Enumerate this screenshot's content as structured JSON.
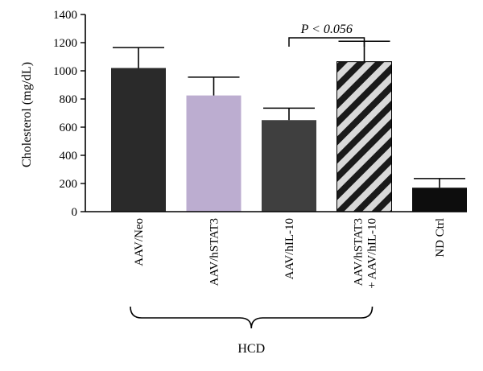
{
  "chart_data": {
    "type": "bar",
    "ylabel": "Cholesterol (mg/dL)",
    "ylim": [
      0,
      1400
    ],
    "yticks": [
      0,
      200,
      400,
      600,
      800,
      1000,
      1200,
      1400
    ],
    "categories": [
      "AAV/Neo",
      "AAV/hSTAT3",
      "AAV/hIL-10",
      "AAV/hSTAT3\n+ AAV/hIL-10",
      "ND Ctrl"
    ],
    "values": [
      1020,
      825,
      650,
      1065,
      170
    ],
    "errors": [
      145,
      130,
      85,
      145,
      65
    ],
    "colors": [
      "#2a2a2a",
      "#bcadd0",
      "#3f3f3f",
      "hatched",
      "#0d0d0d"
    ],
    "significance": {
      "text": "P < 0.056",
      "between": [
        2,
        3
      ]
    },
    "group": {
      "label": "HCD",
      "spans": [
        0,
        3
      ]
    },
    "grid": false
  }
}
